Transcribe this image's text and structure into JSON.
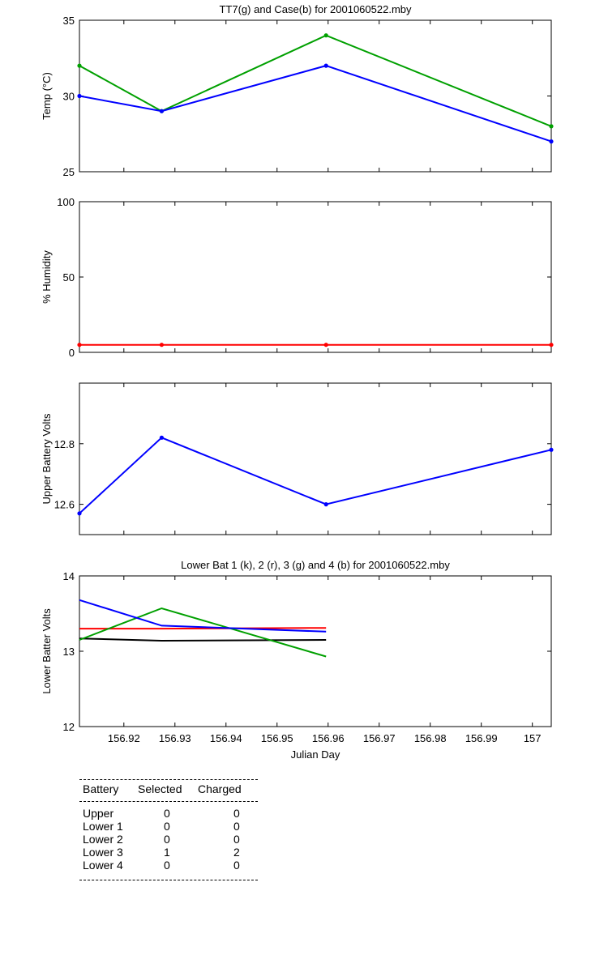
{
  "chart_data": [
    {
      "type": "line",
      "title": "TT7(g) and Case(b) for 2001060522.mby",
      "ylabel": "Temp  (°C)",
      "xlim": [
        156.9113,
        157.0037
      ],
      "ylim": [
        25,
        35
      ],
      "yticks": [
        25,
        30,
        35
      ],
      "series": [
        {
          "color": "#00a000",
          "x": [
            156.9113,
            156.9274,
            156.9596,
            157.0037
          ],
          "y": [
            32,
            29,
            34,
            28
          ]
        },
        {
          "color": "#0000ff",
          "x": [
            156.9113,
            156.9274,
            156.9596,
            157.0037
          ],
          "y": [
            30,
            29,
            32,
            27
          ]
        }
      ]
    },
    {
      "type": "line",
      "title": "",
      "ylabel": "% Humidity",
      "xlim": [
        156.9113,
        157.0037
      ],
      "ylim": [
        0,
        100
      ],
      "yticks": [
        0,
        50,
        100
      ],
      "series": [
        {
          "color": "#ff0000",
          "x": [
            156.9113,
            156.9274,
            156.9596,
            157.0037
          ],
          "y": [
            5,
            5,
            5,
            5
          ]
        }
      ]
    },
    {
      "type": "line",
      "title": "",
      "ylabel": "Upper Battery Volts",
      "xlim": [
        156.9113,
        157.0037
      ],
      "ylim": [
        12.5,
        13.0
      ],
      "yticks": [
        12.6,
        12.8
      ],
      "series": [
        {
          "color": "#0000ff",
          "x": [
            156.9113,
            156.9274,
            156.9596,
            157.0037
          ],
          "y": [
            12.57,
            12.82,
            12.6,
            12.78
          ]
        }
      ]
    },
    {
      "type": "line",
      "title": "Lower Bat 1 (k), 2 (r), 3 (g) and 4 (b) for 2001060522.mby",
      "ylabel": "Lower Batter Volts",
      "xlabel": "Julian Day",
      "xlim": [
        156.9113,
        157.0037
      ],
      "ylim": [
        12,
        14
      ],
      "yticks": [
        12,
        13,
        14
      ],
      "xticks": [
        "156.92",
        "156.93",
        "156.94",
        "156.95",
        "156.96",
        "156.97",
        "156.98",
        "156.99",
        "157"
      ],
      "series": [
        {
          "color": "#000000",
          "x": [
            156.9113,
            156.9274,
            156.9596
          ],
          "y": [
            13.17,
            13.14,
            13.15
          ]
        },
        {
          "color": "#ff0000",
          "x": [
            156.9113,
            156.9274,
            156.9596
          ],
          "y": [
            13.3,
            13.3,
            13.31
          ]
        },
        {
          "color": "#00a000",
          "x": [
            156.9113,
            156.9274,
            156.9596
          ],
          "y": [
            13.15,
            13.57,
            12.93
          ]
        },
        {
          "color": "#0000ff",
          "x": [
            156.9113,
            156.9274,
            156.9596
          ],
          "y": [
            13.68,
            13.34,
            13.26
          ]
        }
      ]
    }
  ],
  "battery_table": {
    "headers": [
      "Battery",
      "Selected",
      "Charged"
    ],
    "rows": [
      [
        "Upper",
        "0",
        "0"
      ],
      [
        "Lower 1",
        "0",
        "0"
      ],
      [
        "Lower 2",
        "0",
        "0"
      ],
      [
        "Lower 3",
        "1",
        "2"
      ],
      [
        "Lower 4",
        "0",
        "0"
      ]
    ]
  }
}
